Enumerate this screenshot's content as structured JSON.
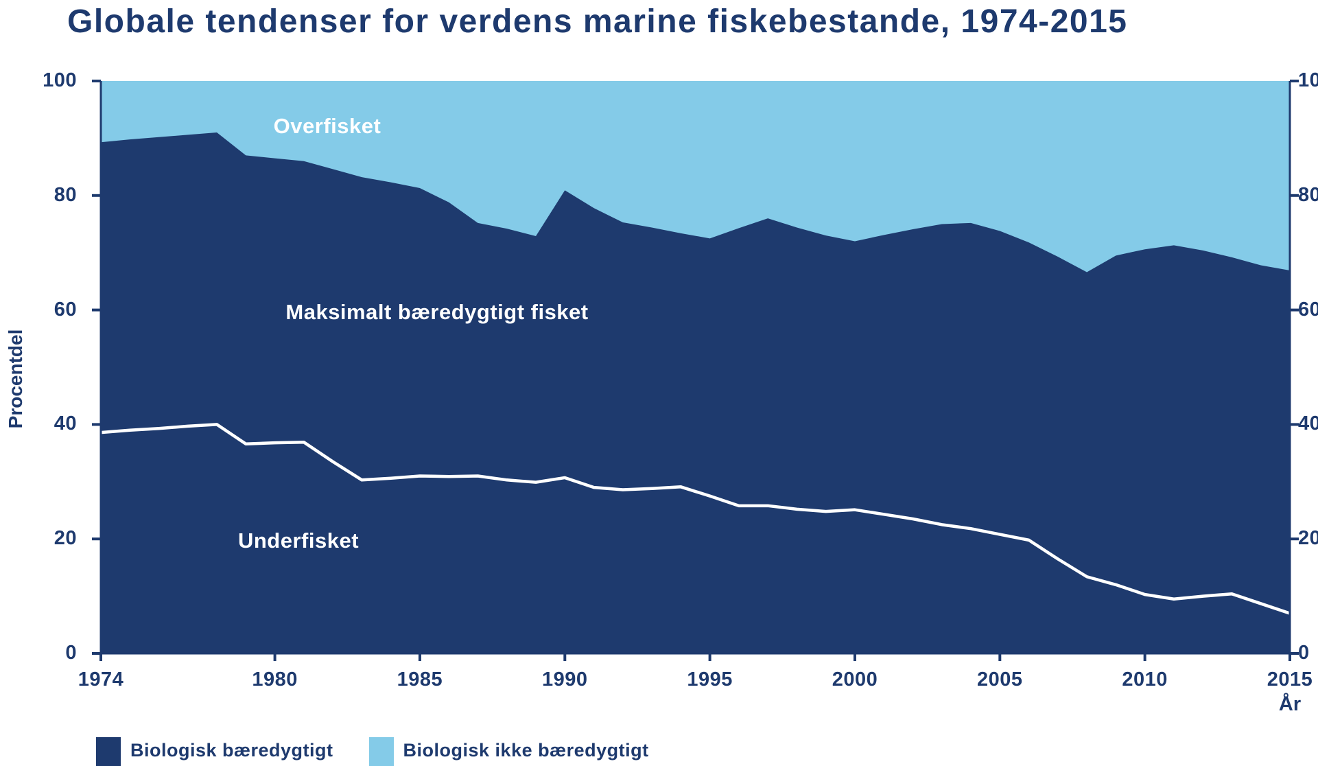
{
  "title": "Globale tendenser for verdens marine fiskebestande, 1974-2015",
  "colors": {
    "dark_blue": "#1E3A6E",
    "light_blue": "#84CBE8",
    "white_line": "#FFFFFF",
    "text": "#1E3A6E",
    "background": "#FFFFFF"
  },
  "chart_data": {
    "type": "area",
    "stacked": true,
    "title": "Globale tendenser for verdens marine fiskebestande, 1974-2015",
    "xlabel": "År",
    "ylabel": "Procentdel",
    "ylim": [
      0,
      100
    ],
    "yticks": [
      0,
      20,
      40,
      60,
      80,
      100
    ],
    "xticks": [
      1974,
      1980,
      1985,
      1990,
      1995,
      2000,
      2005,
      2010,
      2015
    ],
    "grid": false,
    "legend_position": "bottom-left",
    "x": [
      1974,
      1975,
      1976,
      1977,
      1978,
      1979,
      1980,
      1981,
      1982,
      1983,
      1984,
      1985,
      1986,
      1987,
      1988,
      1989,
      1990,
      1991,
      1992,
      1993,
      1994,
      1995,
      1996,
      1997,
      1998,
      1999,
      2000,
      2001,
      2002,
      2003,
      2004,
      2005,
      2006,
      2007,
      2008,
      2009,
      2010,
      2011,
      2012,
      2013,
      2014,
      2015
    ],
    "series": [
      {
        "name": "Biologisk bæredygtigt (øvre grænse af mørkeblåt område)",
        "role": "sustainable-boundary",
        "color": "#1E3A6E",
        "values": [
          89.3,
          89.8,
          90.2,
          90.6,
          91.0,
          87.0,
          86.5,
          86.0,
          84.6,
          83.2,
          82.3,
          81.3,
          78.8,
          75.2,
          74.2,
          72.9,
          80.9,
          77.8,
          75.3,
          74.4,
          73.4,
          72.5,
          74.3,
          76.0,
          74.4,
          73.0,
          72.0,
          73.1,
          74.1,
          75.0,
          75.2,
          73.8,
          71.8,
          69.3,
          66.6,
          69.5,
          70.6,
          71.3,
          70.4,
          69.2,
          67.8,
          66.9
        ]
      },
      {
        "name": "Underfisket (hvid grænselinje)",
        "role": "underfished-boundary",
        "color": "#FFFFFF",
        "values": [
          38.6,
          39.0,
          39.3,
          39.7,
          40.0,
          36.6,
          36.8,
          36.9,
          33.5,
          30.3,
          30.6,
          31.0,
          30.9,
          31.0,
          30.3,
          29.9,
          30.7,
          29.0,
          28.6,
          28.8,
          29.1,
          27.5,
          25.8,
          25.8,
          25.2,
          24.8,
          25.1,
          24.3,
          23.5,
          22.5,
          21.8,
          20.8,
          19.8,
          16.5,
          13.4,
          12.0,
          10.3,
          9.5,
          10.0,
          10.4,
          8.7,
          7.0
        ]
      }
    ],
    "regions": [
      {
        "label": "Overfisket",
        "color": "#84CBE8",
        "text_color": "#FFFFFF"
      },
      {
        "label": "Maksimalt bæredygtigt fisket",
        "color": "#1E3A6E",
        "text_color": "#FFFFFF"
      },
      {
        "label": "Underfisket",
        "color": "#1E3A6E",
        "text_color": "#FFFFFF"
      }
    ],
    "legend": [
      {
        "label": "Biologisk bæredygtigt",
        "color": "#1E3A6E"
      },
      {
        "label": "Biologisk ikke bæredygtigt",
        "color": "#84CBE8"
      }
    ]
  }
}
